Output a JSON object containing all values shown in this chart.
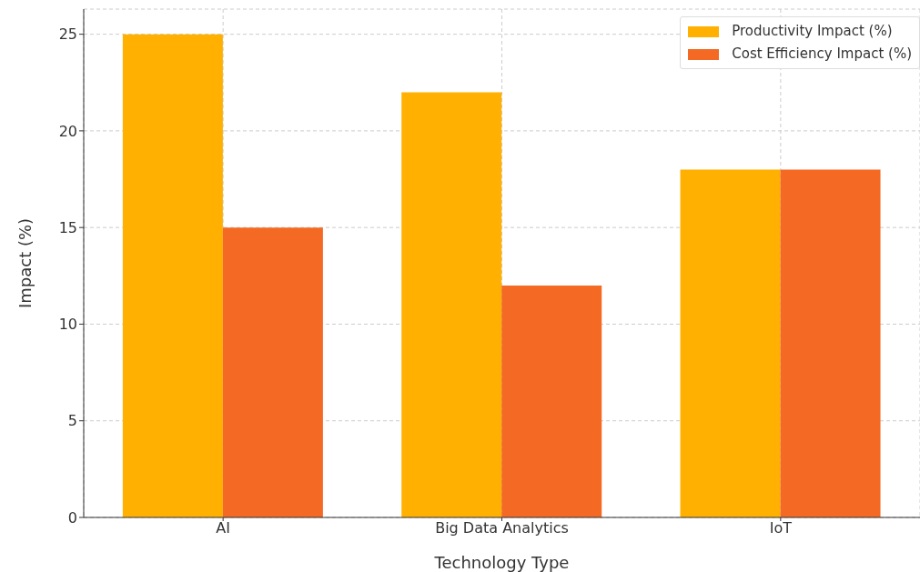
{
  "chart_data": {
    "type": "bar",
    "xlabel": "Technology Type",
    "ylabel": "Impact (%)",
    "categories": [
      "AI",
      "Big Data Analytics",
      "IoT"
    ],
    "series": [
      {
        "name": "Productivity Impact (%)",
        "color": "#ffb000",
        "values": [
          25,
          22,
          18
        ]
      },
      {
        "name": "Cost Efficiency Impact (%)",
        "color": "#f46a25",
        "values": [
          15,
          12,
          18
        ]
      }
    ],
    "ylim": [
      0,
      26.3
    ],
    "yticks": [
      0,
      5,
      10,
      15,
      20,
      25
    ],
    "grid": true,
    "legend": "top right"
  }
}
